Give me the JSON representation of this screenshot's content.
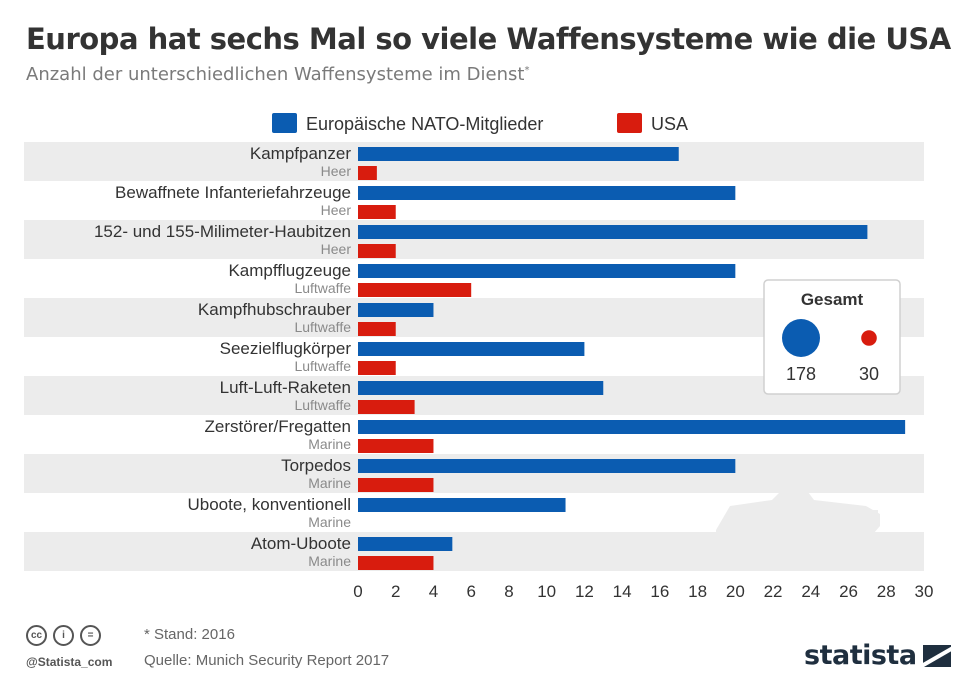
{
  "header": {
    "title": "Europa hat sechs Mal so viele Waffensysteme wie die USA",
    "subtitle": "Anzahl der unterschiedlichen Waffensysteme im Dienst",
    "subtitle_mark": "*"
  },
  "chart_data": {
    "type": "bar",
    "orientation": "horizontal",
    "categories": [
      "Kampfpanzer",
      "Bewaffnete Infanteriefahrzeuge",
      "152- und 155-Milimeter-Haubitzen",
      "Kampfflugzeuge",
      "Kampfhubschrauber",
      "Seezielflugkörper",
      "Luft-Luft-Raketen",
      "Zerstörer/Fregatten",
      "Torpedos",
      "Uboote, konventionell",
      "Atom-Uboote"
    ],
    "sublabels": [
      "Heer",
      "Heer",
      "Heer",
      "Luftwaffe",
      "Luftwaffe",
      "Luftwaffe",
      "Luftwaffe",
      "Marine",
      "Marine",
      "Marine",
      "Marine"
    ],
    "series": [
      {
        "name": "Europäische NATO-Mitglieder",
        "color": "#0b5cb1",
        "values": [
          17,
          20,
          27,
          20,
          4,
          12,
          13,
          29,
          20,
          11,
          5
        ]
      },
      {
        "name": "USA",
        "color": "#d81c0e",
        "values": [
          1,
          2,
          2,
          6,
          2,
          2,
          3,
          4,
          4,
          0,
          4
        ]
      }
    ],
    "xlim": [
      0,
      30
    ],
    "xticks": [
      0,
      2,
      4,
      6,
      8,
      10,
      12,
      14,
      16,
      18,
      20,
      22,
      24,
      26,
      28,
      30
    ],
    "legend_position": "top",
    "totals": {
      "title": "Gesamt",
      "items": [
        {
          "series": "Europäische NATO-Mitglieder",
          "value": 178
        },
        {
          "series": "USA",
          "value": 30
        }
      ]
    }
  },
  "footer": {
    "footnote": "* Stand: 2016",
    "source": "Quelle: Munich Security Report 2017",
    "handle": "@Statista_com",
    "logo": "statista"
  }
}
